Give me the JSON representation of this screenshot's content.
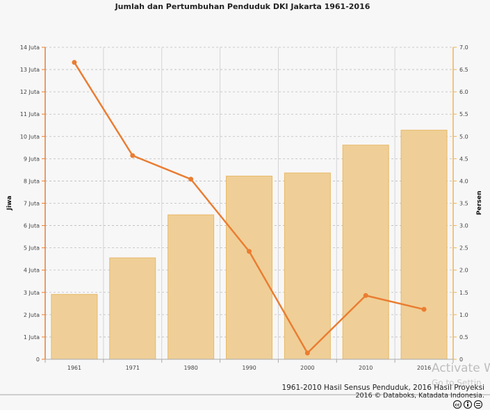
{
  "chart_data": {
    "type": "bar",
    "title": "Jumlah dan Pertumbuhan Penduduk DKI Jakarta 1961-2016",
    "categories": [
      "1961",
      "1971",
      "1980",
      "1990",
      "2000",
      "2010",
      "2016"
    ],
    "series": [
      {
        "axis": "left",
        "chart_type": "bar",
        "values": [
          2.91,
          4.55,
          6.48,
          8.22,
          8.36,
          9.61,
          10.28
        ]
      },
      {
        "axis": "right",
        "chart_type": "line",
        "values": [
          6.66,
          4.57,
          4.04,
          2.42,
          0.14,
          1.43,
          1.12
        ]
      }
    ],
    "y_left": {
      "label": "Jiwa",
      "range": [
        0,
        14
      ],
      "ticks": [
        "0",
        "1 Juta",
        "2 Juta",
        "3 Juta",
        "4 Juta",
        "5 Juta",
        "6 Juta",
        "7 Juta",
        "8 Juta",
        "9 Juta",
        "10 Juta",
        "11 Juta",
        "12 Juta",
        "13 Juta",
        "14 Juta"
      ]
    },
    "y_right": {
      "label": "Persen",
      "range": [
        0,
        7
      ],
      "ticks": [
        "0",
        "0.5",
        "1.0",
        "1.5",
        "2.0",
        "2.5",
        "3.0",
        "3.5",
        "4.0",
        "4.5",
        "5.0",
        "5.5",
        "6.0",
        "6.5",
        "7.0"
      ]
    },
    "grid": true,
    "legend": "none"
  },
  "footer": {
    "source": "1961-2010 Hasil Sensus Penduduk, 2016 Hasil Proyeksi",
    "copyright": "2016 © Databoks, Katadata Indonesia."
  },
  "watermark": {
    "line1": "Activate W",
    "line2": "Go to Settin"
  },
  "colors": {
    "bar_fill": "#efcf97",
    "bar_stroke": "#e8b968",
    "line": "#ea7d32",
    "left_axis": "#ea7d32",
    "right_axis": "#efb450",
    "grid": "#bbbbbb"
  }
}
